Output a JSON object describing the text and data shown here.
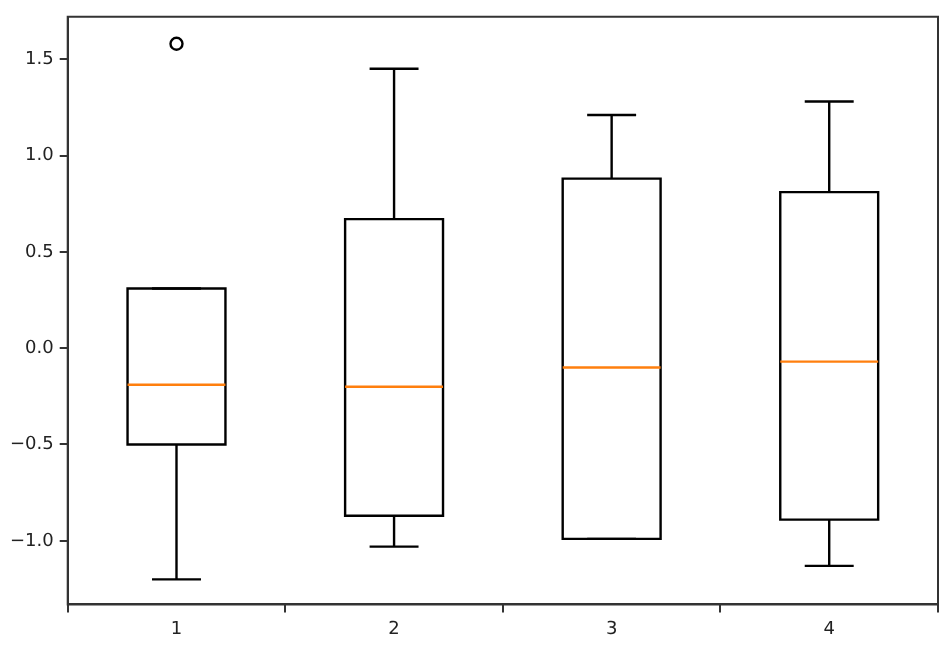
{
  "chart_data": {
    "type": "box",
    "categories": [
      "1",
      "2",
      "3",
      "4"
    ],
    "boxes": [
      {
        "low": -1.2,
        "q1": -0.5,
        "median": -0.19,
        "q3": 0.31,
        "high": 0.31,
        "outliers": [
          1.58
        ]
      },
      {
        "low": -1.03,
        "q1": -0.87,
        "median": -0.2,
        "q3": 0.67,
        "high": 1.45
      },
      {
        "low": -0.99,
        "q1": -0.99,
        "median": -0.1,
        "q3": 0.88,
        "high": 1.21
      },
      {
        "low": -1.13,
        "q1": -0.89,
        "median": -0.07,
        "q3": 0.81,
        "high": 1.28
      }
    ],
    "ylim": [
      -1.33,
      1.72
    ],
    "yticks": [
      {
        "value": -1,
        "label": "−1.0"
      },
      {
        "value": -0.5,
        "label": "−0.5"
      },
      {
        "value": 0,
        "label": "0.0"
      },
      {
        "value": 0.5,
        "label": "0.5"
      },
      {
        "value": 1,
        "label": "1.0"
      },
      {
        "value": 1.5,
        "label": "1.5"
      }
    ],
    "grid": false,
    "legend": false
  }
}
